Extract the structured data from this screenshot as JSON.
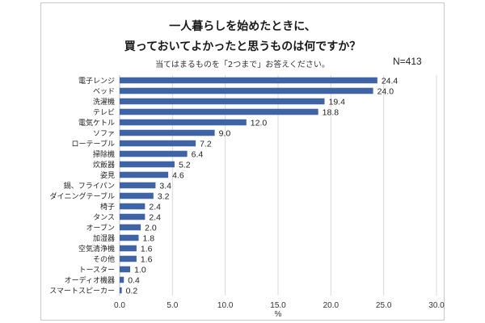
{
  "chart_data": {
    "type": "bar",
    "orientation": "horizontal",
    "title_line1": "一人暮らしを始めたときに、",
    "title_line2": "買っておいてよかったと思うものは何ですか？",
    "subtitle": "当てはまるものを「2つまで」お答えください。",
    "sample_size": "N=413",
    "xlabel": "%",
    "xlim": [
      0,
      30
    ],
    "xticks": [
      "0.0",
      "5.0",
      "10.0",
      "15.0",
      "20.0",
      "25.0",
      "30.0"
    ],
    "grid": true,
    "bar_color": "#3f64a6",
    "categories": [
      "電子レンジ",
      "ベッド",
      "洗濯機",
      "テレビ",
      "電気ケトル",
      "ソファ",
      "ローテーブル",
      "掃除機",
      "炊飯器",
      "姿見",
      "鍋、フライパン",
      "ダイニングテーブル",
      "椅子",
      "タンス",
      "オーブン",
      "加湿器",
      "空気清浄機",
      "その他",
      "トースター",
      "オーディオ機器",
      "スマートスピーカー"
    ],
    "values": [
      24.4,
      24.0,
      19.4,
      18.8,
      12.0,
      9.0,
      7.2,
      6.4,
      5.2,
      4.6,
      3.4,
      3.2,
      2.4,
      2.4,
      2.0,
      1.8,
      1.6,
      1.6,
      1.0,
      0.4,
      0.2
    ],
    "value_labels": [
      "24.4",
      "24.0",
      "19.4",
      "18.8",
      "12.0",
      "9.0",
      "7.2",
      "6.4",
      "5.2",
      "4.6",
      "3.4",
      "3.2",
      "2.4",
      "2.4",
      "2.0",
      "1.8",
      "1.6",
      "1.6",
      "1.0",
      "0.4",
      "0.2"
    ]
  }
}
